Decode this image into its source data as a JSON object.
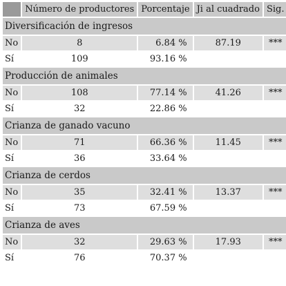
{
  "header": {
    "col0": "",
    "col1": "Número de productores",
    "col2": "Porcentaje",
    "col3": "Ji al cuadrado",
    "col4": "Sig."
  },
  "sections": [
    {
      "title": "Diversificación de ingresos",
      "no": {
        "label": "No",
        "n": "8",
        "pct": "6.84 %",
        "chi": "87.19",
        "sig": "***"
      },
      "si": {
        "label": "Sí",
        "n": "109",
        "pct": "93.16 %"
      }
    },
    {
      "title": "Producción de animales",
      "no": {
        "label": "No",
        "n": "108",
        "pct": "77.14 %",
        "chi": "41.26",
        "sig": "***"
      },
      "si": {
        "label": "Sí",
        "n": "32",
        "pct": "22.86 %"
      }
    },
    {
      "title": "Crianza de ganado vacuno",
      "no": {
        "label": "No",
        "n": "71",
        "pct": "66.36 %",
        "chi": "11.45",
        "sig": "***"
      },
      "si": {
        "label": "Sí",
        "n": "36",
        "pct": "33.64 %"
      }
    },
    {
      "title": "Crianza de cerdos",
      "no": {
        "label": "No",
        "n": "35",
        "pct": "32.41 %",
        "chi": "13.37",
        "sig": "***"
      },
      "si": {
        "label": "Sí",
        "n": "73",
        "pct": "67.59 %"
      }
    },
    {
      "title": "Crianza de aves",
      "no": {
        "label": "No",
        "n": "32",
        "pct": "29.63 %",
        "chi": "17.93",
        "sig": "***"
      },
      "si": {
        "label": "Sí",
        "n": "76",
        "pct": "70.37 %"
      }
    }
  ]
}
